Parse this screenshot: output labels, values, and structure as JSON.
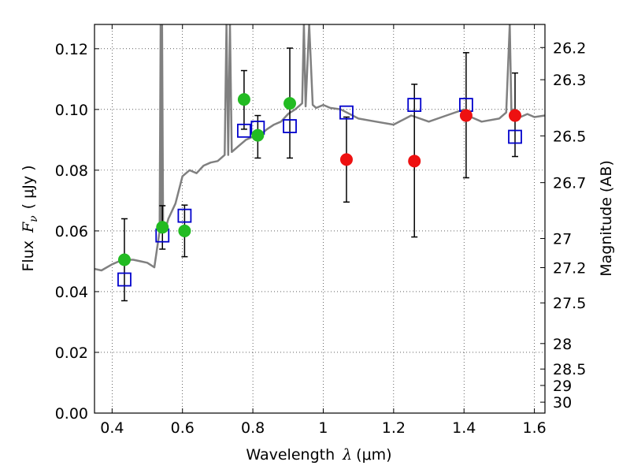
{
  "chart_data": {
    "type": "scatter",
    "title": "",
    "xlabel": {
      "prefix": "Wavelength",
      "symbol": "λ",
      "unit": "(μm)"
    },
    "ylabel": {
      "prefix": "Flux",
      "symbol": "F",
      "subscript": "ν",
      "unit": "( μJy )"
    },
    "y2label": "Magnitude (AB)",
    "xlim": [
      0.35,
      1.63
    ],
    "ylim": [
      0.0,
      0.128
    ],
    "grid": true,
    "x_ticks": [
      0.4,
      0.6,
      0.8,
      1.0,
      1.2,
      1.4,
      1.6
    ],
    "x_tick_labels": [
      "0.4",
      "0.6",
      "0.8",
      "1",
      "1.2",
      "1.4",
      "1.6"
    ],
    "y_ticks": [
      0.0,
      0.02,
      0.04,
      0.06,
      0.08,
      0.1,
      0.12
    ],
    "y_tick_labels": [
      "0.00",
      "0.02",
      "0.04",
      "0.06",
      "0.08",
      "0.10",
      "0.12"
    ],
    "y2_ticks": [
      {
        "label": "26.2",
        "flux": 0.1204
      },
      {
        "label": "26.3",
        "flux": 0.1098
      },
      {
        "label": "26.5",
        "flux": 0.0913
      },
      {
        "label": "26.7",
        "flux": 0.0759
      },
      {
        "label": "27",
        "flux": 0.0575
      },
      {
        "label": "27.2",
        "flux": 0.0479
      },
      {
        "label": "27.5",
        "flux": 0.0363
      },
      {
        "label": "28",
        "flux": 0.0229
      },
      {
        "label": "28.5",
        "flux": 0.0145
      },
      {
        "label": "29",
        "flux": 0.0091
      },
      {
        "label": "30",
        "flux": 0.0036
      }
    ],
    "colors": {
      "green": "#22bb22",
      "red": "#ee1111",
      "blue_square": "#0000cc",
      "spectrum": "#808080",
      "errorbar": "#000000"
    },
    "series": [
      {
        "name": "green-points",
        "marker": "circle",
        "x": [
          0.435,
          0.543,
          0.606,
          0.775,
          0.814,
          0.905
        ],
        "y": [
          0.0505,
          0.0612,
          0.06,
          0.1033,
          0.0915,
          0.102
        ],
        "yerr_low": [
          0.037,
          0.054,
          0.0515,
          0.0935,
          0.084,
          0.084
        ],
        "yerr_high": [
          0.064,
          0.0683,
          0.0685,
          0.1128,
          0.098,
          0.1202
        ]
      },
      {
        "name": "red-points",
        "marker": "circle",
        "x": [
          1.066,
          1.259,
          1.406,
          1.545
        ],
        "y": [
          0.0835,
          0.083,
          0.098,
          0.098
        ],
        "yerr_low": [
          0.0695,
          0.058,
          0.0775,
          0.0845
        ],
        "yerr_high": [
          0.0975,
          0.1083,
          0.1187,
          0.112
        ]
      },
      {
        "name": "model-squares",
        "marker": "square",
        "x": [
          0.435,
          0.543,
          0.606,
          0.775,
          0.814,
          0.905,
          1.066,
          1.259,
          1.406,
          1.545
        ],
        "y": [
          0.044,
          0.0585,
          0.065,
          0.093,
          0.094,
          0.0945,
          0.099,
          0.1015,
          0.1015,
          0.091
        ]
      },
      {
        "name": "spectrum",
        "marker": "line",
        "x": [
          0.35,
          0.37,
          0.4,
          0.42,
          0.44,
          0.46,
          0.48,
          0.5,
          0.52,
          0.535,
          0.538,
          0.54,
          0.542,
          0.545,
          0.55,
          0.56,
          0.58,
          0.6,
          0.62,
          0.64,
          0.66,
          0.68,
          0.7,
          0.72,
          0.725,
          0.73,
          0.735,
          0.74,
          0.76,
          0.78,
          0.8,
          0.82,
          0.84,
          0.86,
          0.88,
          0.9,
          0.92,
          0.94,
          0.945,
          0.95,
          0.96,
          0.97,
          0.98,
          1.0,
          1.02,
          1.05,
          1.1,
          1.15,
          1.2,
          1.25,
          1.3,
          1.35,
          1.4,
          1.42,
          1.45,
          1.5,
          1.52,
          1.53,
          1.535,
          1.54,
          1.56,
          1.58,
          1.6,
          1.63
        ],
        "y": [
          0.0475,
          0.047,
          0.049,
          0.05,
          0.0505,
          0.0505,
          0.05,
          0.0495,
          0.048,
          0.06,
          0.128,
          0.062,
          0.128,
          0.0615,
          0.06,
          0.064,
          0.069,
          0.078,
          0.08,
          0.079,
          0.0815,
          0.0825,
          0.083,
          0.085,
          0.128,
          0.085,
          0.128,
          0.086,
          0.088,
          0.09,
          0.091,
          0.0915,
          0.0935,
          0.095,
          0.096,
          0.0985,
          0.1,
          0.102,
          0.128,
          0.101,
          0.128,
          0.1015,
          0.1005,
          0.1015,
          0.1005,
          0.1,
          0.097,
          0.096,
          0.095,
          0.098,
          0.096,
          0.098,
          0.1,
          0.0975,
          0.096,
          0.097,
          0.099,
          0.128,
          0.098,
          0.1,
          0.0975,
          0.0985,
          0.0975,
          0.098
        ]
      }
    ]
  }
}
